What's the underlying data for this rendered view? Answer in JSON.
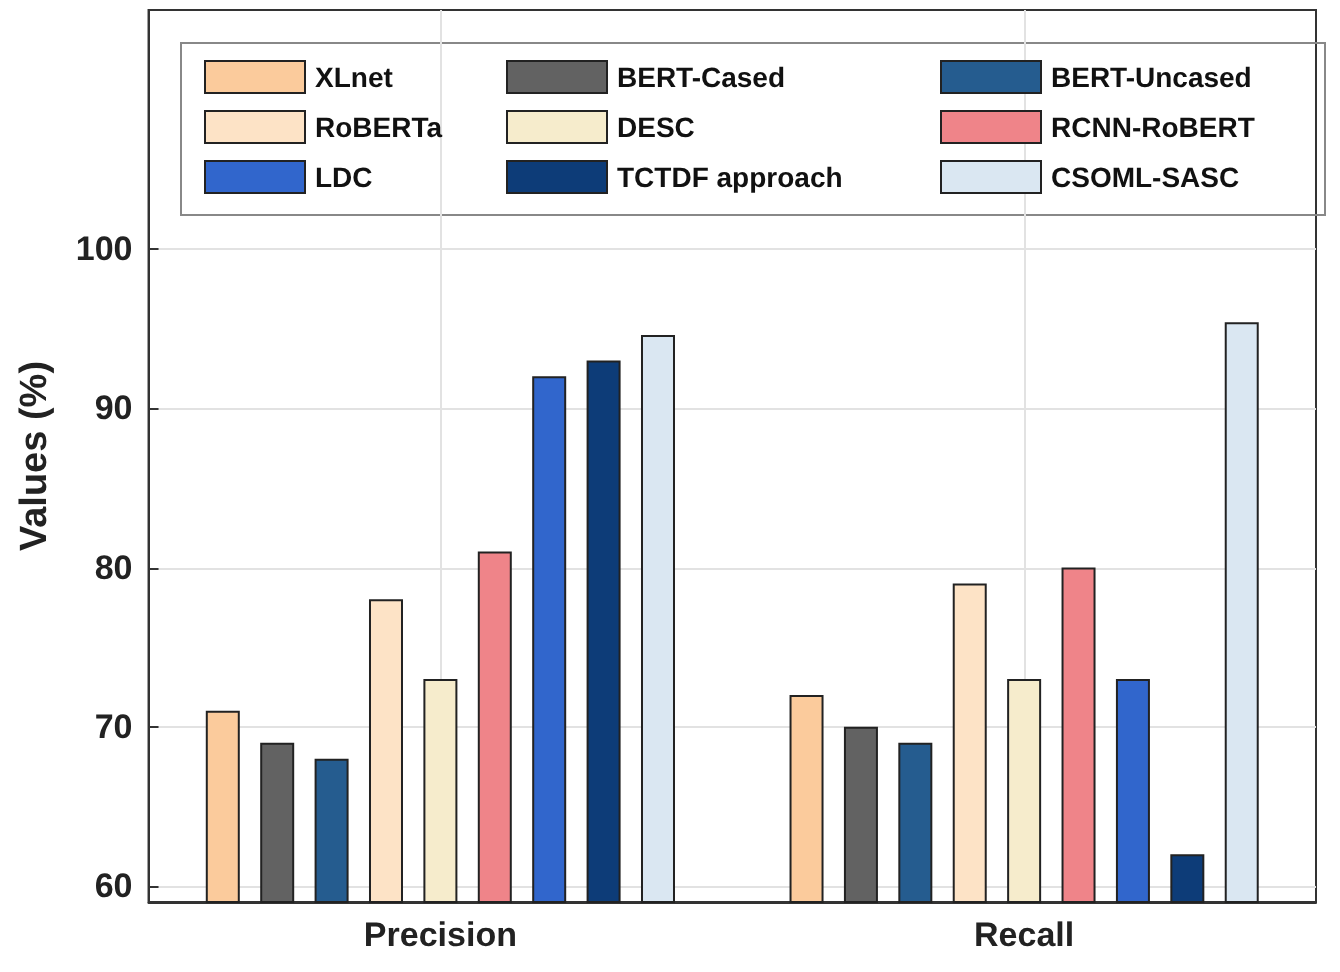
{
  "chart_data": {
    "type": "bar",
    "ylabel": "Values (%)",
    "categories": [
      "Precision",
      "Recall"
    ],
    "ylim": [
      59,
      115
    ],
    "yticks": [
      60,
      70,
      80,
      90,
      100
    ],
    "grid": true,
    "legend": "top",
    "series": [
      {
        "name": "XLnet",
        "color": "#fbcb9c",
        "values": [
          71,
          72
        ]
      },
      {
        "name": "BERT-Cased",
        "color": "#626262",
        "values": [
          69,
          70
        ]
      },
      {
        "name": "BERT-Uncased",
        "color": "#255c8f",
        "values": [
          68,
          69
        ]
      },
      {
        "name": "RoBERTa",
        "color": "#fde3c6",
        "values": [
          78,
          79
        ]
      },
      {
        "name": "DESC",
        "color": "#f6eccc",
        "values": [
          73,
          73
        ]
      },
      {
        "name": "RCNN-RoBERT",
        "color": "#ef8489",
        "values": [
          81,
          80
        ]
      },
      {
        "name": "LDC",
        "color": "#3166cc",
        "values": [
          92,
          73
        ]
      },
      {
        "name": "TCTDF approach",
        "color": "#0d3c78",
        "values": [
          93,
          62
        ]
      },
      {
        "name": "CSOML-SASC",
        "color": "#dae7f2",
        "values": [
          94.6,
          95.4
        ]
      }
    ]
  }
}
